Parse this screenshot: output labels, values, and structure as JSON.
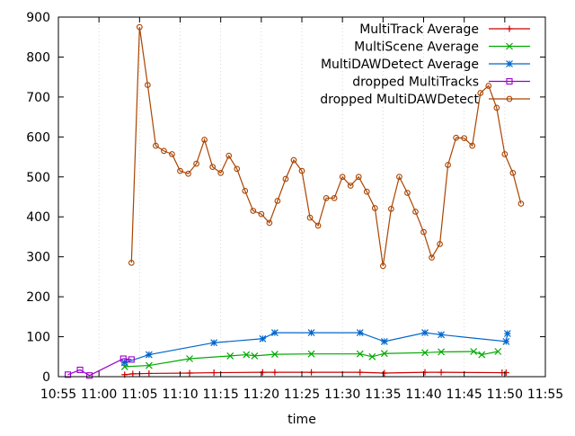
{
  "chart_data": {
    "type": "line",
    "title": "",
    "xlabel": "time",
    "ylabel": "",
    "xlim": [
      "10:55",
      "11:55"
    ],
    "ylim": [
      0,
      900
    ],
    "x_ticks": [
      "10:55",
      "11:00",
      "11:05",
      "11:10",
      "11:15",
      "11:20",
      "11:25",
      "11:30",
      "11:35",
      "11:40",
      "11:45",
      "11:50",
      "11:55"
    ],
    "y_ticks": [
      0,
      100,
      200,
      300,
      400,
      500,
      600,
      700,
      800,
      900
    ],
    "grid": false,
    "legend_position": "top-right",
    "series": [
      {
        "name": "MultiTrack Average",
        "color": "#cc0000",
        "marker": "plus",
        "points": [
          [
            "11:03:10",
            5
          ],
          [
            "11:04:10",
            7
          ],
          [
            "11:06:10",
            8
          ],
          [
            "11:11:10",
            9
          ],
          [
            "11:14:10",
            10
          ],
          [
            "11:20:10",
            11
          ],
          [
            "11:21:40",
            11
          ],
          [
            "11:26:10",
            11
          ],
          [
            "11:32:10",
            11
          ],
          [
            "11:35:10",
            9
          ],
          [
            "11:40:10",
            11
          ],
          [
            "11:42:10",
            11
          ],
          [
            "11:49:40",
            10
          ],
          [
            "11:50:10",
            10
          ]
        ]
      },
      {
        "name": "MultiScene Average",
        "color": "#00aa00",
        "marker": "x",
        "points": [
          [
            "11:03:10",
            25
          ],
          [
            "11:06:10",
            28
          ],
          [
            "11:11:10",
            45
          ],
          [
            "11:16:10",
            52
          ],
          [
            "11:18:10",
            55
          ],
          [
            "11:19:10",
            52
          ],
          [
            "11:21:40",
            56
          ],
          [
            "11:26:10",
            57
          ],
          [
            "11:32:10",
            57
          ],
          [
            "11:33:40",
            50
          ],
          [
            "11:35:10",
            58
          ],
          [
            "11:40:10",
            60
          ],
          [
            "11:42:10",
            62
          ],
          [
            "11:46:10",
            63
          ],
          [
            "11:47:10",
            55
          ],
          [
            "11:49:10",
            63
          ]
        ]
      },
      {
        "name": "MultiDAWDetect Average",
        "color": "#0066cc",
        "marker": "asterisk",
        "points": [
          [
            "11:03:10",
            35
          ],
          [
            "11:06:10",
            55
          ],
          [
            "11:14:10",
            85
          ],
          [
            "11:20:10",
            95
          ],
          [
            "11:21:40",
            110
          ],
          [
            "11:26:10",
            110
          ],
          [
            "11:32:10",
            110
          ],
          [
            "11:35:10",
            88
          ],
          [
            "11:40:10",
            110
          ],
          [
            "11:42:10",
            105
          ],
          [
            "11:50:10",
            88
          ],
          [
            "11:50:20",
            108
          ]
        ]
      },
      {
        "name": "dropped MultiTracks",
        "color": "#9900cc",
        "marker": "square",
        "points": [
          [
            "10:56:10",
            5
          ],
          [
            "10:57:40",
            17
          ],
          [
            "10:58:50",
            3
          ],
          [
            "11:03:00",
            45
          ],
          [
            "11:04:00",
            43
          ]
        ]
      },
      {
        "name": "dropped MultiDAWDetect",
        "color": "#aa4400",
        "marker": "circle",
        "points": [
          [
            "11:04:00",
            285
          ],
          [
            "11:05:00",
            875
          ],
          [
            "11:06:00",
            730
          ],
          [
            "11:07:00",
            578
          ],
          [
            "11:08:00",
            565
          ],
          [
            "11:09:00",
            557
          ],
          [
            "11:10:00",
            515
          ],
          [
            "11:11:00",
            508
          ],
          [
            "11:12:00",
            533
          ],
          [
            "11:13:00",
            593
          ],
          [
            "11:14:00",
            525
          ],
          [
            "11:15:00",
            510
          ],
          [
            "11:16:00",
            553
          ],
          [
            "11:17:00",
            520
          ],
          [
            "11:18:00",
            465
          ],
          [
            "11:19:00",
            415
          ],
          [
            "11:20:00",
            407
          ],
          [
            "11:21:00",
            385
          ],
          [
            "11:22:00",
            440
          ],
          [
            "11:23:00",
            495
          ],
          [
            "11:24:00",
            542
          ],
          [
            "11:25:00",
            515
          ],
          [
            "11:26:00",
            398
          ],
          [
            "11:27:00",
            378
          ],
          [
            "11:28:00",
            447
          ],
          [
            "11:29:00",
            447
          ],
          [
            "11:30:00",
            500
          ],
          [
            "11:31:00",
            478
          ],
          [
            "11:32:00",
            500
          ],
          [
            "11:33:00",
            463
          ],
          [
            "11:34:00",
            422
          ],
          [
            "11:35:00",
            277
          ],
          [
            "11:36:00",
            420
          ],
          [
            "11:37:00",
            500
          ],
          [
            "11:38:00",
            460
          ],
          [
            "11:39:00",
            413
          ],
          [
            "11:40:00",
            362
          ],
          [
            "11:41:00",
            298
          ],
          [
            "11:42:00",
            332
          ],
          [
            "11:43:00",
            530
          ],
          [
            "11:44:00",
            598
          ],
          [
            "11:45:00",
            597
          ],
          [
            "11:46:00",
            578
          ],
          [
            "11:47:00",
            710
          ],
          [
            "11:48:00",
            728
          ],
          [
            "11:49:00",
            673
          ],
          [
            "11:50:00",
            557
          ],
          [
            "11:51:00",
            510
          ],
          [
            "11:52:00",
            433
          ]
        ]
      }
    ]
  }
}
